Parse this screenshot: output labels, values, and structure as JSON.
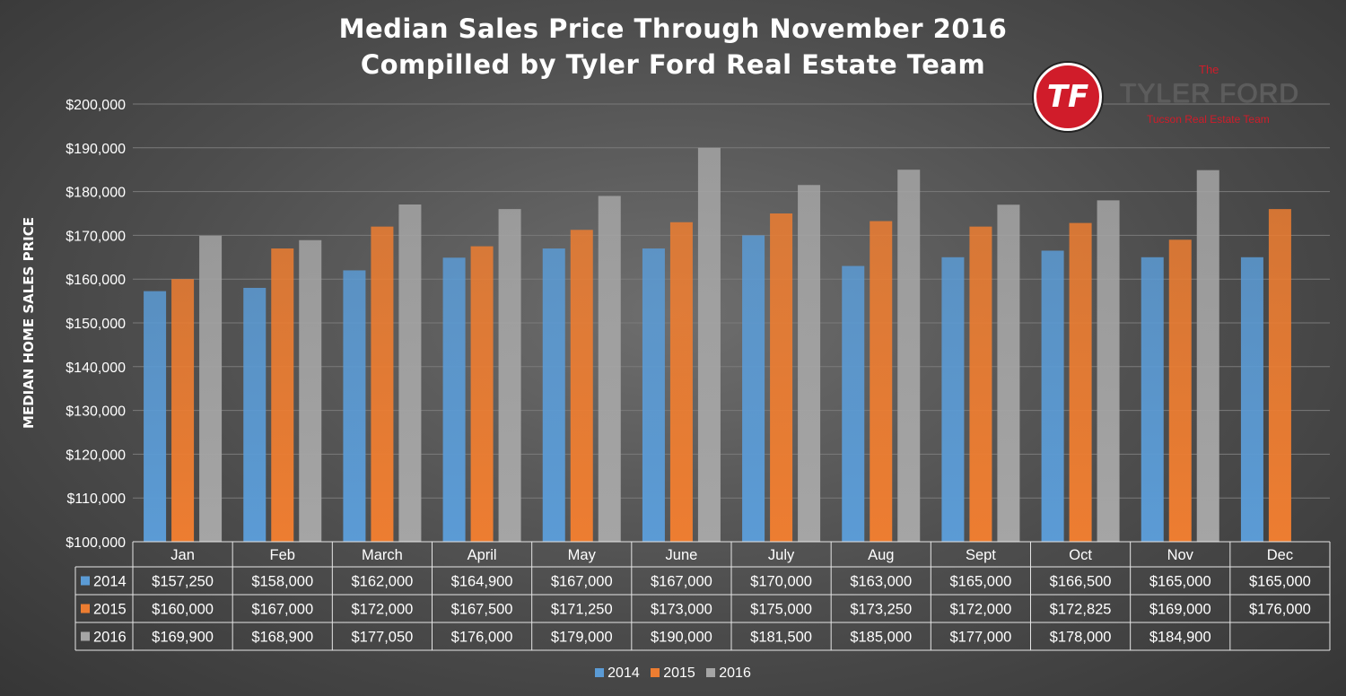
{
  "chart_data": {
    "type": "bar",
    "title_lines": [
      "Median Sales Price Through November 2016",
      "Compilled by Tyler Ford Real Estate Team"
    ],
    "ylabel": "MEDIAN HOME SALES PRICE",
    "xlabel": "",
    "ylim": [
      100000,
      200000
    ],
    "yticks": [
      "$100,000",
      "$110,000",
      "$120,000",
      "$130,000",
      "$140,000",
      "$150,000",
      "$160,000",
      "$170,000",
      "$180,000",
      "$190,000",
      "$200,000"
    ],
    "grid": true,
    "legend": "bottom",
    "categories": [
      "Jan",
      "Feb",
      "March",
      "April",
      "May",
      "June",
      "July",
      "Aug",
      "Sept",
      "Oct",
      "Nov",
      "Dec"
    ],
    "series": [
      {
        "name": "2014",
        "color": "#5b9bd5",
        "values": [
          157250,
          158000,
          162000,
          164900,
          167000,
          167000,
          170000,
          163000,
          165000,
          166500,
          165000,
          165000
        ],
        "labels": [
          "$157,250",
          "$158,000",
          "$162,000",
          "$164,900",
          "$167,000",
          "$167,000",
          "$170,000",
          "$163,000",
          "$165,000",
          "$166,500",
          "$165,000",
          "$165,000"
        ]
      },
      {
        "name": "2015",
        "color": "#ed7d31",
        "values": [
          160000,
          167000,
          172000,
          167500,
          171250,
          173000,
          175000,
          173250,
          172000,
          172825,
          169000,
          176000
        ],
        "labels": [
          "$160,000",
          "$167,000",
          "$172,000",
          "$167,500",
          "$171,250",
          "$173,000",
          "$175,000",
          "$173,250",
          "$172,000",
          "$172,825",
          "$169,000",
          "$176,000"
        ]
      },
      {
        "name": "2016",
        "color": "#a5a5a5",
        "values": [
          169900,
          168900,
          177050,
          176000,
          179000,
          190000,
          181500,
          185000,
          177000,
          178000,
          184900,
          null
        ],
        "labels": [
          "$169,900",
          "$168,900",
          "$177,050",
          "$176,000",
          "$179,000",
          "$190,000",
          "$181,500",
          "$185,000",
          "$177,000",
          "$178,000",
          "$184,900",
          ""
        ]
      }
    ]
  },
  "logo": {
    "badge": "TF",
    "the": "The",
    "name": "TYLER FORD",
    "sub": "Tucson Real Estate Team"
  }
}
